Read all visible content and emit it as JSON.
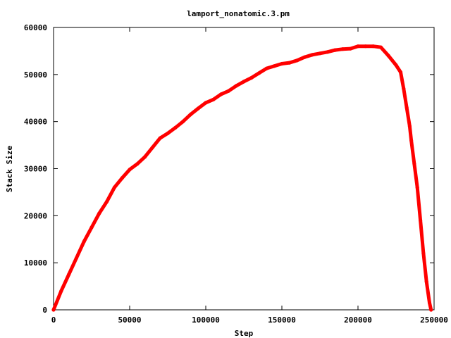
{
  "chart_data": {
    "type": "line",
    "title": "lamport_nonatomic.3.pm",
    "xlabel": "Step",
    "ylabel": "Stack Size",
    "xlim": [
      0,
      250000
    ],
    "ylim": [
      0,
      60000
    ],
    "grid": false,
    "legend": "none",
    "x_ticks": [
      0,
      50000,
      100000,
      150000,
      200000,
      250000
    ],
    "y_ticks": [
      0,
      10000,
      20000,
      30000,
      40000,
      50000,
      60000
    ],
    "x_tick_labels": [
      "0",
      "50000",
      "100000",
      "150000",
      "200000",
      "250000"
    ],
    "y_tick_labels": [
      "0",
      "10000",
      "20000",
      "30000",
      "40000",
      "50000",
      "60000"
    ],
    "series": [
      {
        "color": "#ff0000",
        "x": [
          0,
          5000,
          10000,
          15000,
          20000,
          25000,
          30000,
          35000,
          40000,
          45000,
          50000,
          55000,
          60000,
          65000,
          70000,
          75000,
          80000,
          85000,
          90000,
          95000,
          100000,
          105000,
          110000,
          115000,
          120000,
          125000,
          130000,
          135000,
          140000,
          145000,
          150000,
          155000,
          160000,
          165000,
          170000,
          175000,
          180000,
          185000,
          190000,
          195000,
          200000,
          205000,
          210000,
          215000,
          220000,
          225000,
          228000,
          230000,
          232000,
          234000,
          235000,
          237000,
          239000,
          241000,
          243000,
          245000,
          247000,
          248000
        ],
        "y": [
          0,
          4000,
          7500,
          11000,
          14500,
          17500,
          20500,
          23000,
          26000,
          28000,
          29800,
          31000,
          32500,
          34500,
          36500,
          37500,
          38700,
          40000,
          41500,
          42800,
          44000,
          44700,
          45800,
          46500,
          47600,
          48500,
          49300,
          50300,
          51300,
          51800,
          52300,
          52500,
          53000,
          53700,
          54200,
          54500,
          54800,
          55200,
          55400,
          55500,
          56000,
          56000,
          56000,
          55800,
          54000,
          52000,
          50500,
          47000,
          43000,
          39000,
          36000,
          31000,
          26000,
          19000,
          12000,
          6000,
          1500,
          0
        ]
      }
    ]
  }
}
